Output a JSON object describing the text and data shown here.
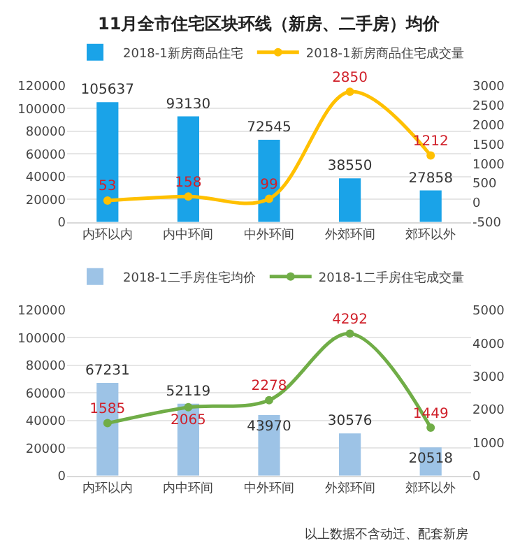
{
  "chart_data": [
    {
      "type": "bar",
      "title": "11月全市住宅区块环线（新房、二手房）均价",
      "categories": [
        "内环以内",
        "内中环间",
        "中外环间",
        "外郊环间",
        "郊环以外"
      ],
      "series": [
        {
          "name": "2018-1新房商品住宅",
          "color": "#1aa3e8",
          "values": [
            105637,
            93130,
            72545,
            38550,
            27858
          ]
        },
        {
          "type": "line",
          "axis": "y2",
          "name": "2018-1新房商品住宅成交量",
          "color": "#ffc000",
          "values": [
            53,
            158,
            99,
            2850,
            1212
          ]
        }
      ],
      "ylim": [
        0,
        120000
      ],
      "yticks": [
        0,
        20000,
        40000,
        60000,
        80000,
        100000,
        120000
      ],
      "y2lim": [
        -500,
        3000
      ],
      "y2ticks": [
        -500,
        0,
        500,
        1000,
        1500,
        2000,
        2500,
        3000
      ],
      "data_labels": true,
      "legend": "top",
      "grid": "y",
      "marker": "circle"
    },
    {
      "type": "bar",
      "categories": [
        "内环以内",
        "内中环间",
        "中外环间",
        "外郊环间",
        "郊环以外"
      ],
      "series": [
        {
          "name": "2018-1二手房住宅均价",
          "color": "#9dc3e6",
          "values": [
            67231,
            52119,
            43970,
            30576,
            20518
          ]
        },
        {
          "type": "line",
          "axis": "y2",
          "name": "2018-1二手房住宅成交量",
          "color": "#70ad47",
          "values": [
            1585,
            2065,
            2278,
            4292,
            1449
          ]
        }
      ],
      "ylim": [
        0,
        120000
      ],
      "yticks": [
        0,
        20000,
        40000,
        60000,
        80000,
        100000,
        120000
      ],
      "y2lim": [
        0,
        5000
      ],
      "y2ticks": [
        0,
        1000,
        2000,
        3000,
        4000,
        5000
      ],
      "data_labels": true,
      "legend": "top",
      "grid": "y",
      "marker": "circle",
      "annotations": [
        "以上数据不含动迁、配套新房"
      ]
    }
  ]
}
